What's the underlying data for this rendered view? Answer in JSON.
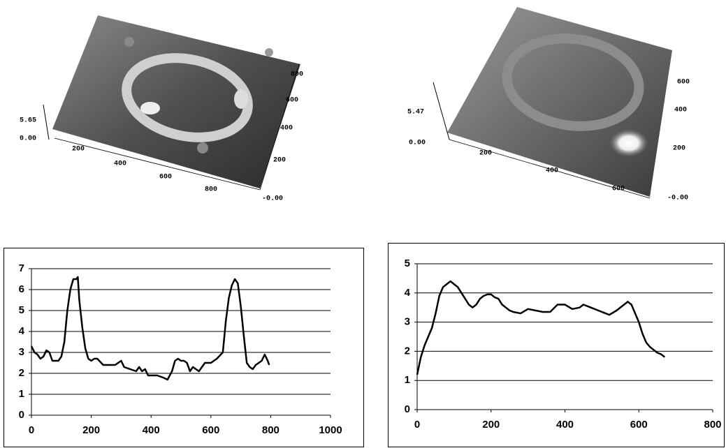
{
  "chart_data": [
    {
      "type": "line",
      "xlim": [
        0,
        1000
      ],
      "xticks": [
        0,
        200,
        400,
        600,
        800,
        1000
      ],
      "ylim": [
        0,
        7
      ],
      "yticks": [
        0,
        1,
        2,
        3,
        4,
        5,
        6,
        7
      ],
      "grid": true,
      "x": [
        0,
        10,
        20,
        30,
        40,
        50,
        60,
        70,
        80,
        90,
        100,
        110,
        120,
        130,
        140,
        150,
        155,
        160,
        170,
        180,
        190,
        200,
        210,
        220,
        240,
        260,
        280,
        300,
        310,
        330,
        350,
        360,
        370,
        380,
        390,
        400,
        420,
        440,
        455,
        470,
        480,
        490,
        500,
        510,
        520,
        530,
        540,
        560,
        580,
        600,
        620,
        640,
        650,
        660,
        670,
        680,
        690,
        700,
        710,
        720,
        730,
        740,
        750,
        770,
        780,
        790,
        795
      ],
      "series": [
        {
          "color": "#000000",
          "values": [
            3.3,
            3.0,
            2.9,
            2.7,
            2.8,
            3.1,
            3.0,
            2.6,
            2.6,
            2.6,
            2.8,
            3.5,
            5.0,
            6.0,
            6.5,
            6.5,
            6.6,
            5.5,
            4.2,
            3.2,
            2.7,
            2.6,
            2.7,
            2.7,
            2.4,
            2.4,
            2.4,
            2.6,
            2.3,
            2.2,
            2.1,
            2.3,
            2.1,
            2.2,
            1.9,
            1.9,
            1.9,
            1.8,
            1.7,
            2.1,
            2.6,
            2.7,
            2.6,
            2.6,
            2.5,
            2.1,
            2.3,
            2.1,
            2.5,
            2.5,
            2.7,
            3.0,
            4.5,
            5.6,
            6.2,
            6.5,
            6.3,
            5.2,
            3.8,
            2.5,
            2.3,
            2.2,
            2.4,
            2.6,
            2.9,
            2.6,
            2.4
          ]
        }
      ]
    },
    {
      "type": "line",
      "xlim": [
        0,
        800
      ],
      "xticks": [
        0,
        200,
        400,
        600,
        800
      ],
      "ylim": [
        0,
        5
      ],
      "yticks": [
        0,
        1,
        2,
        3,
        4,
        5
      ],
      "grid": true,
      "x": [
        0,
        10,
        20,
        30,
        40,
        50,
        60,
        70,
        80,
        90,
        100,
        110,
        120,
        130,
        140,
        150,
        160,
        170,
        180,
        190,
        200,
        210,
        220,
        230,
        240,
        250,
        260,
        280,
        300,
        320,
        340,
        360,
        380,
        400,
        420,
        440,
        450,
        470,
        490,
        510,
        520,
        540,
        560,
        570,
        580,
        590,
        600,
        610,
        620,
        630,
        640,
        650,
        660,
        670
      ],
      "series": [
        {
          "color": "#000000",
          "values": [
            1.2,
            1.8,
            2.2,
            2.5,
            2.8,
            3.3,
            3.9,
            4.2,
            4.3,
            4.4,
            4.3,
            4.2,
            4.0,
            3.8,
            3.6,
            3.5,
            3.6,
            3.8,
            3.9,
            3.95,
            3.95,
            3.85,
            3.8,
            3.6,
            3.5,
            3.4,
            3.35,
            3.3,
            3.45,
            3.4,
            3.35,
            3.35,
            3.6,
            3.6,
            3.45,
            3.5,
            3.6,
            3.5,
            3.4,
            3.3,
            3.25,
            3.4,
            3.6,
            3.7,
            3.6,
            3.3,
            3.0,
            2.6,
            2.3,
            2.15,
            2.05,
            1.95,
            1.9,
            1.8
          ]
        }
      ]
    }
  ],
  "surface_plots": [
    {
      "z_labels": [
        "5.65",
        "0.00"
      ],
      "x_labels": [
        "200",
        "400",
        "600",
        "800"
      ],
      "y_labels": [
        "800",
        "600",
        "400",
        "200",
        "-0.00"
      ]
    },
    {
      "z_labels": [
        "5.47",
        "0.00"
      ],
      "x_labels": [
        "200",
        "400",
        "600"
      ],
      "y_labels": [
        "600",
        "400",
        "200",
        "-0.00"
      ]
    }
  ]
}
